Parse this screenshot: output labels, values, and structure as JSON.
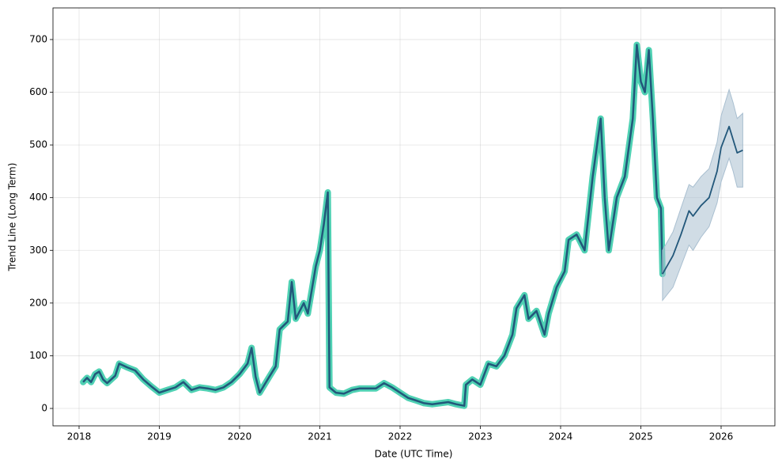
{
  "chart_data": {
    "type": "line",
    "xlabel": "Date (UTC Time)",
    "ylabel": "Trend Line (Long Term)",
    "xlim": [
      2017.675,
      2026.67
    ],
    "xticks": [
      2018,
      2019,
      2020,
      2021,
      2022,
      2023,
      2024,
      2025,
      2026
    ],
    "ylim": [
      -33,
      760
    ],
    "yticks": [
      0,
      100,
      200,
      300,
      400,
      500,
      600,
      700
    ],
    "grid": true,
    "series": [
      {
        "color": "#22577a",
        "outline_color": "#4fd1b3",
        "x": [
          2018.05,
          2018.1,
          2018.15,
          2018.2,
          2018.25,
          2018.3,
          2018.35,
          2018.45,
          2018.5,
          2018.6,
          2018.7,
          2018.8,
          2018.9,
          2019.0,
          2019.1,
          2019.2,
          2019.3,
          2019.4,
          2019.5,
          2019.6,
          2019.7,
          2019.8,
          2019.9,
          2020.0,
          2020.1,
          2020.15,
          2020.2,
          2020.25,
          2020.35,
          2020.45,
          2020.5,
          2020.6,
          2020.65,
          2020.7,
          2020.8,
          2020.85,
          2020.95,
          2021.0,
          2021.05,
          2021.1,
          2021.12,
          2021.2,
          2021.3,
          2021.4,
          2021.5,
          2021.6,
          2021.7,
          2021.8,
          2021.9,
          2022.0,
          2022.1,
          2022.2,
          2022.3,
          2022.4,
          2022.5,
          2022.6,
          2022.7,
          2022.8,
          2022.82,
          2022.9,
          2023.0,
          2023.1,
          2023.2,
          2023.3,
          2023.4,
          2023.45,
          2023.55,
          2023.6,
          2023.7,
          2023.8,
          2023.85,
          2023.95,
          2024.05,
          2024.1,
          2024.2,
          2024.3,
          2024.4,
          2024.5,
          2024.55,
          2024.6,
          2024.7,
          2024.8,
          2024.9,
          2024.95,
          2025.0,
          2025.05,
          2025.1,
          2025.15,
          2025.2,
          2025.25,
          2025.27
        ],
        "values": [
          50,
          58,
          50,
          65,
          70,
          55,
          48,
          62,
          85,
          78,
          72,
          55,
          42,
          30,
          35,
          40,
          50,
          35,
          40,
          38,
          35,
          40,
          50,
          65,
          85,
          115,
          60,
          30,
          55,
          80,
          150,
          165,
          240,
          170,
          200,
          180,
          270,
          300,
          350,
          410,
          40,
          30,
          28,
          35,
          38,
          38,
          38,
          48,
          40,
          30,
          20,
          15,
          10,
          8,
          10,
          12,
          8,
          5,
          45,
          55,
          45,
          85,
          80,
          100,
          140,
          190,
          215,
          170,
          185,
          140,
          180,
          230,
          260,
          320,
          330,
          300,
          440,
          550,
          400,
          300,
          400,
          440,
          550,
          690,
          620,
          600,
          680,
          550,
          400,
          380,
          255
        ]
      },
      {
        "color": "#22577a",
        "band_color": "#a9bfd0",
        "x": [
          2025.27,
          2025.4,
          2025.5,
          2025.6,
          2025.65,
          2025.75,
          2025.85,
          2025.95,
          2026.0,
          2026.1,
          2026.15,
          2026.2,
          2026.27
        ],
        "values": [
          255,
          290,
          330,
          375,
          365,
          385,
          400,
          450,
          495,
          535,
          510,
          485,
          490
        ],
        "lower": [
          205,
          230,
          270,
          310,
          300,
          325,
          345,
          390,
          430,
          475,
          450,
          420,
          420
        ],
        "upper": [
          300,
          335,
          380,
          425,
          420,
          440,
          455,
          505,
          555,
          605,
          580,
          550,
          560
        ]
      }
    ]
  }
}
